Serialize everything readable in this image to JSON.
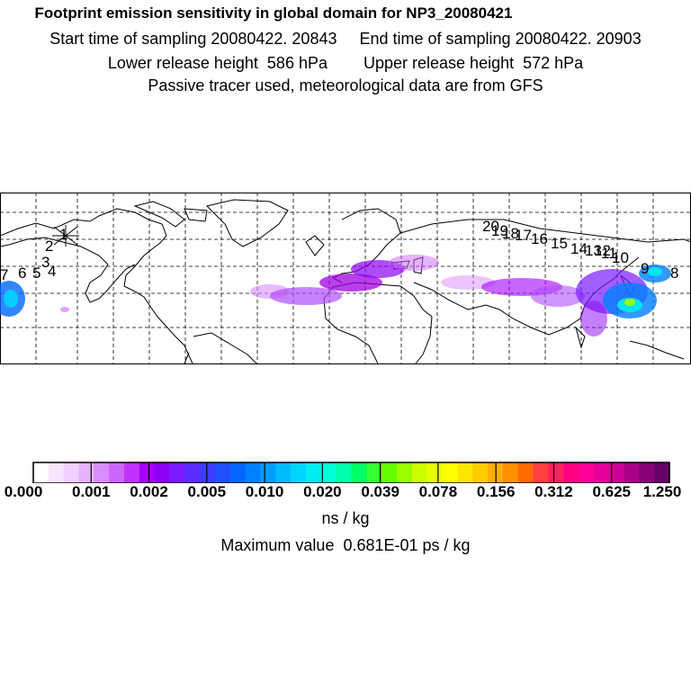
{
  "header": {
    "title": "Footprint emission sensitivity in global domain for NP3_20080421",
    "line2": "Start time of sampling 20080422. 20843     End time of sampling 20080422. 20903",
    "line3": "Lower release height  586 hPa        Upper release height  572 hPa",
    "line4": "Passive tracer used, meteorological data are from GFS"
  },
  "map": {
    "projection": "equirectangular global",
    "grid": true,
    "release_marker": "x-marker-near-alaska",
    "trajectory_labels": [
      "1",
      "2",
      "3",
      "4",
      "5",
      "6",
      "7",
      "8",
      "9",
      "10",
      "11",
      "12",
      "13",
      "14",
      "15",
      "16",
      "17",
      "18",
      "19",
      "20"
    ],
    "plume_color_dominant": "#a000e0"
  },
  "colorbar": {
    "tick_labels": [
      "0.000",
      "0.001",
      "0.002",
      "0.005",
      "0.010",
      "0.020",
      "0.039",
      "0.078",
      "0.156",
      "0.312",
      "0.625",
      "1.250"
    ],
    "colors": [
      "#ffffff",
      "#f6e6ff",
      "#f0d0ff",
      "#e6b3ff",
      "#d98cff",
      "#cc66ff",
      "#bf33ff",
      "#a300ff",
      "#8c00f5",
      "#7a1aff",
      "#5a2cff",
      "#3d3dff",
      "#1f4fff",
      "#0066ff",
      "#0080ff",
      "#009dff",
      "#00bbff",
      "#00d5ff",
      "#00eeee",
      "#00ffd5",
      "#00ffaa",
      "#00ff66",
      "#33ff33",
      "#66ff00",
      "#99ff00",
      "#ccff00",
      "#e6ff00",
      "#ffff00",
      "#ffe600",
      "#ffcc00",
      "#ffb000",
      "#ff9000",
      "#ff6a00",
      "#ff4040",
      "#ff2060",
      "#ff0080",
      "#ff0099",
      "#e6009a",
      "#cc0099",
      "#aa0088",
      "#880077",
      "#660066"
    ],
    "unit": "ns / kg"
  },
  "footer": {
    "max_value": "Maximum value  0.681E-01 ps / kg"
  }
}
